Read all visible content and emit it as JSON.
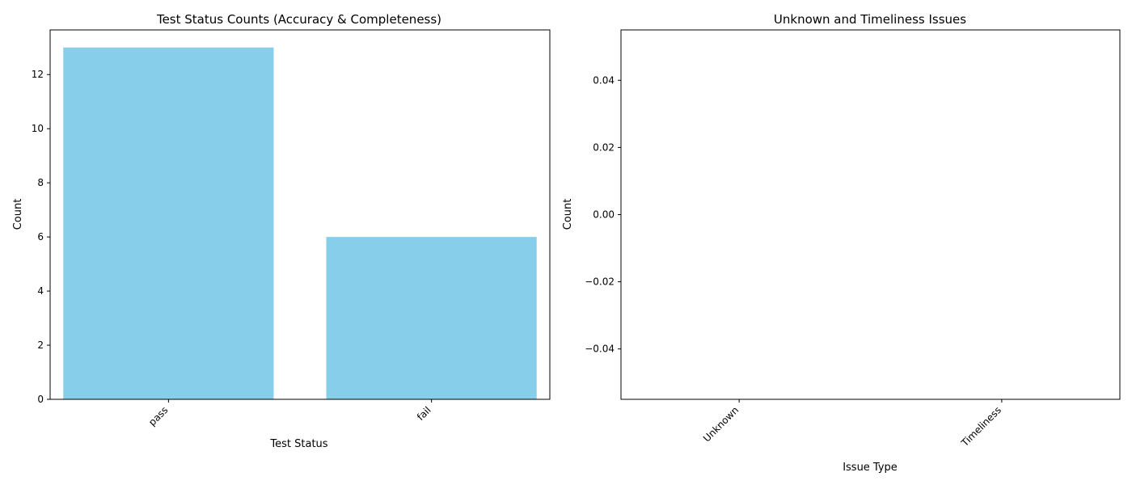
{
  "chart_data": [
    {
      "type": "bar",
      "title": "Test Status Counts (Accuracy & Completeness)",
      "xlabel": "Test Status",
      "ylabel": "Count",
      "categories": [
        "pass",
        "fail"
      ],
      "values": [
        13,
        6
      ],
      "ylim": [
        0,
        13.65
      ],
      "yticks": [
        0,
        2,
        4,
        6,
        8,
        10,
        12
      ],
      "ytick_labels": [
        "0",
        "2",
        "4",
        "6",
        "8",
        "10",
        "12"
      ],
      "bar_color": "#87ceeb",
      "grid": false,
      "legend": "none"
    },
    {
      "type": "bar",
      "title": "Unknown and Timeliness Issues",
      "xlabel": "Issue Type",
      "ylabel": "Count",
      "categories": [
        "Unknown",
        "Timeliness"
      ],
      "values": [
        0,
        0
      ],
      "ylim": [
        -0.055,
        0.055
      ],
      "yticks": [
        -0.04,
        -0.02,
        0,
        0.02,
        0.04
      ],
      "ytick_labels": [
        "−0.04",
        "−0.02",
        "0.00",
        "0.02",
        "0.04"
      ],
      "bar_color": "#87ceeb",
      "grid": false,
      "legend": "none"
    }
  ]
}
